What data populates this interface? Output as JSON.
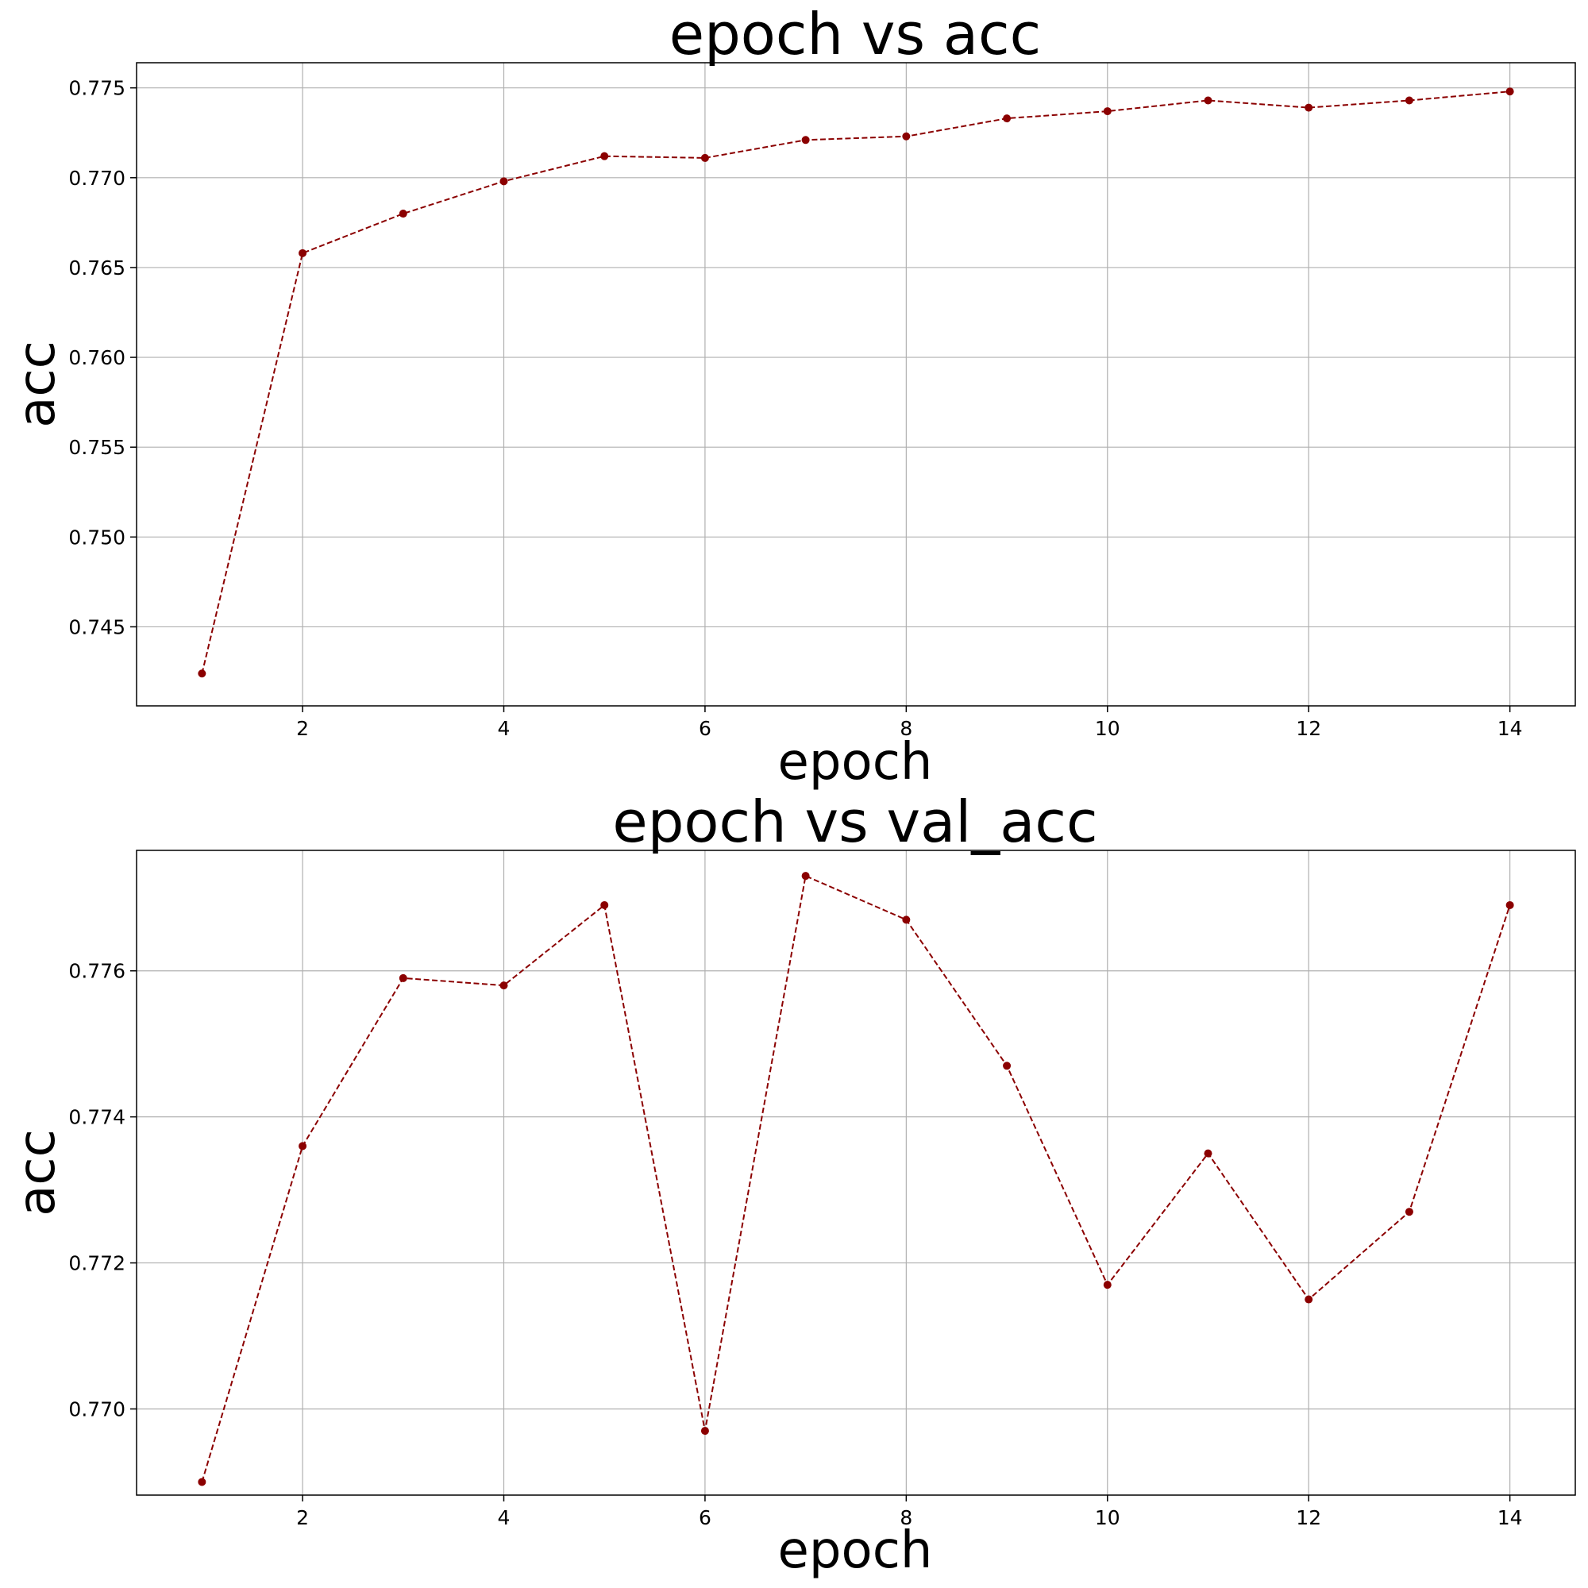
{
  "figure": {
    "background": "#ffffff",
    "series_color": "#8b0000",
    "grid_color": "#b0b0b0"
  },
  "chart_data": [
    {
      "type": "line",
      "title": "epoch vs acc",
      "xlabel": "epoch",
      "ylabel": "acc",
      "x": [
        1,
        2,
        3,
        4,
        5,
        6,
        7,
        8,
        9,
        10,
        11,
        12,
        13,
        14
      ],
      "series": [
        {
          "values": [
            0.7424,
            0.7658,
            0.768,
            0.7698,
            0.7712,
            0.7711,
            0.7721,
            0.7723,
            0.7733,
            0.7737,
            0.7743,
            0.7739,
            0.7743,
            0.7748
          ],
          "line_style": "dashed",
          "marker": "circle"
        }
      ],
      "xlim": [
        0.35,
        14.65
      ],
      "ylim": [
        0.7406,
        0.7764
      ],
      "xticks": [
        2,
        4,
        6,
        8,
        10,
        12,
        14
      ],
      "xtick_labels": [
        "2",
        "4",
        "6",
        "8",
        "10",
        "12",
        "14"
      ],
      "yticks": [
        0.745,
        0.75,
        0.755,
        0.76,
        0.765,
        0.77,
        0.775
      ],
      "ytick_labels": [
        "0.745",
        "0.750",
        "0.755",
        "0.760",
        "0.765",
        "0.770",
        "0.775"
      ],
      "grid": true
    },
    {
      "type": "line",
      "title": "epoch vs val_acc",
      "xlabel": "epoch",
      "ylabel": "acc",
      "x": [
        1,
        2,
        3,
        4,
        5,
        6,
        7,
        8,
        9,
        10,
        11,
        12,
        13,
        14
      ],
      "series": [
        {
          "values": [
            0.769,
            0.7736,
            0.7759,
            0.7758,
            0.7769,
            0.7697,
            0.7773,
            0.7767,
            0.7747,
            0.7717,
            0.7735,
            0.7715,
            0.7727,
            0.7769
          ],
          "line_style": "dashed",
          "marker": "circle"
        }
      ],
      "xlim": [
        0.35,
        14.65
      ],
      "ylim": [
        0.76882,
        0.77765
      ],
      "xticks": [
        2,
        4,
        6,
        8,
        10,
        12,
        14
      ],
      "xtick_labels": [
        "2",
        "4",
        "6",
        "8",
        "10",
        "12",
        "14"
      ],
      "yticks": [
        0.77,
        0.772,
        0.774,
        0.776
      ],
      "ytick_labels": [
        "0.770",
        "0.772",
        "0.774",
        "0.776"
      ],
      "grid": true
    }
  ]
}
